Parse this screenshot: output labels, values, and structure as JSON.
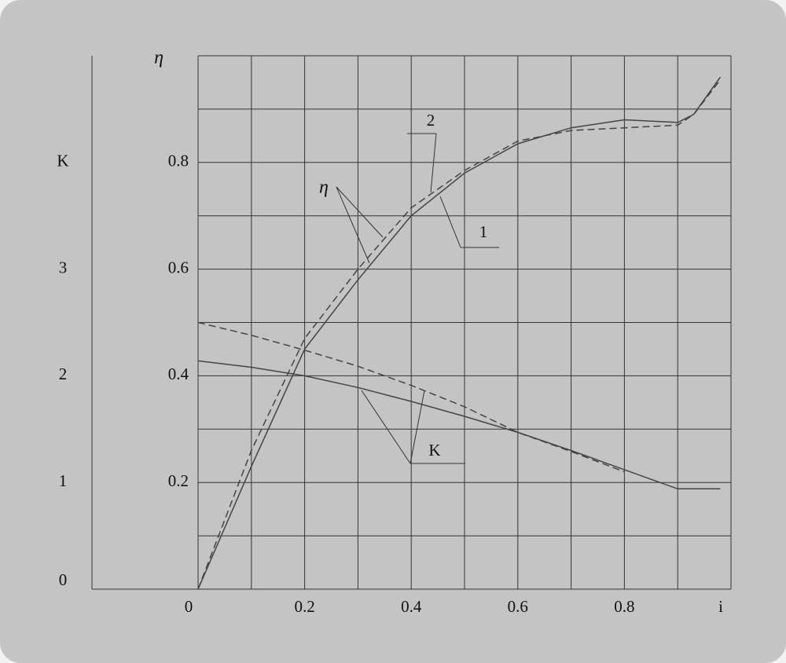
{
  "chart_data": {
    "type": "line",
    "x": [
      0,
      0.1,
      0.2,
      0.3,
      0.4,
      0.5,
      0.6,
      0.7,
      0.8,
      0.9,
      0.93,
      0.98
    ],
    "xlim": [
      0,
      1
    ],
    "xticks": [
      0,
      0.2,
      0.4,
      0.6,
      0.8
    ],
    "minor_xticks": [
      0.1,
      0.3,
      0.5,
      0.7,
      0.9,
      1.0
    ],
    "xlabel": "i",
    "ylim": [
      0,
      1
    ],
    "yticks": [
      0.2,
      0.4,
      0.6,
      0.8,
      {
        "value": 1.0,
        "label": "η"
      }
    ],
    "minor_yticks": [
      0.1,
      0.3,
      0.5,
      0.7,
      0.9
    ],
    "y2lim": [
      0,
      5
    ],
    "y2ticks": [
      0,
      1,
      2,
      3,
      {
        "value": 4,
        "label": "K"
      }
    ],
    "grid": true,
    "series": [
      {
        "color": "#444444",
        "dash": "solid",
        "values": [
          0,
          0.23,
          0.45,
          0.58,
          0.7,
          0.78,
          0.835,
          0.865,
          0.88,
          0.875,
          0.89,
          0.96
        ]
      },
      {
        "color": "#444444",
        "dash": "dashed",
        "values": [
          0,
          0.26,
          0.47,
          0.6,
          0.715,
          0.785,
          0.84,
          0.86,
          0.865,
          0.87,
          0.89,
          0.955
        ]
      },
      {
        "color": "#444444",
        "dash": "solid",
        "axis": "y2",
        "values": [
          2.14,
          2.08,
          2.0,
          1.89,
          1.76,
          1.62,
          1.47,
          1.3,
          1.12,
          0.94,
          0.94,
          0.94
        ]
      },
      {
        "color": "#444444",
        "dash": "dashed",
        "axis": "y2",
        "values": [
          2.5,
          2.38,
          2.24,
          2.09,
          1.91,
          1.71,
          1.47,
          1.29,
          1.1,
          null,
          null,
          null
        ]
      }
    ],
    "annotations": [
      "2",
      "1",
      "η",
      "K"
    ]
  }
}
